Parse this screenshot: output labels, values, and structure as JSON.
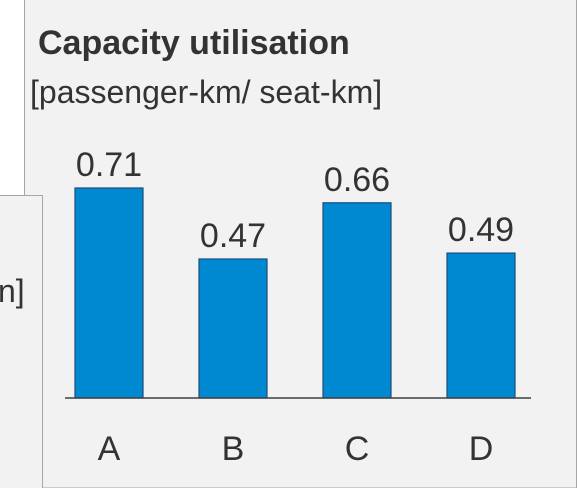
{
  "chart_data": {
    "type": "bar",
    "title": "Capacity utilisation",
    "subtitle": "[passenger-km/ seat-km]",
    "categories": [
      "A",
      "B",
      "C",
      "D"
    ],
    "values": [
      0.71,
      0.47,
      0.66,
      0.49
    ],
    "color": "#0088d1",
    "ylim": [
      0,
      0.95
    ]
  },
  "side_panel": {
    "text": "n]"
  }
}
